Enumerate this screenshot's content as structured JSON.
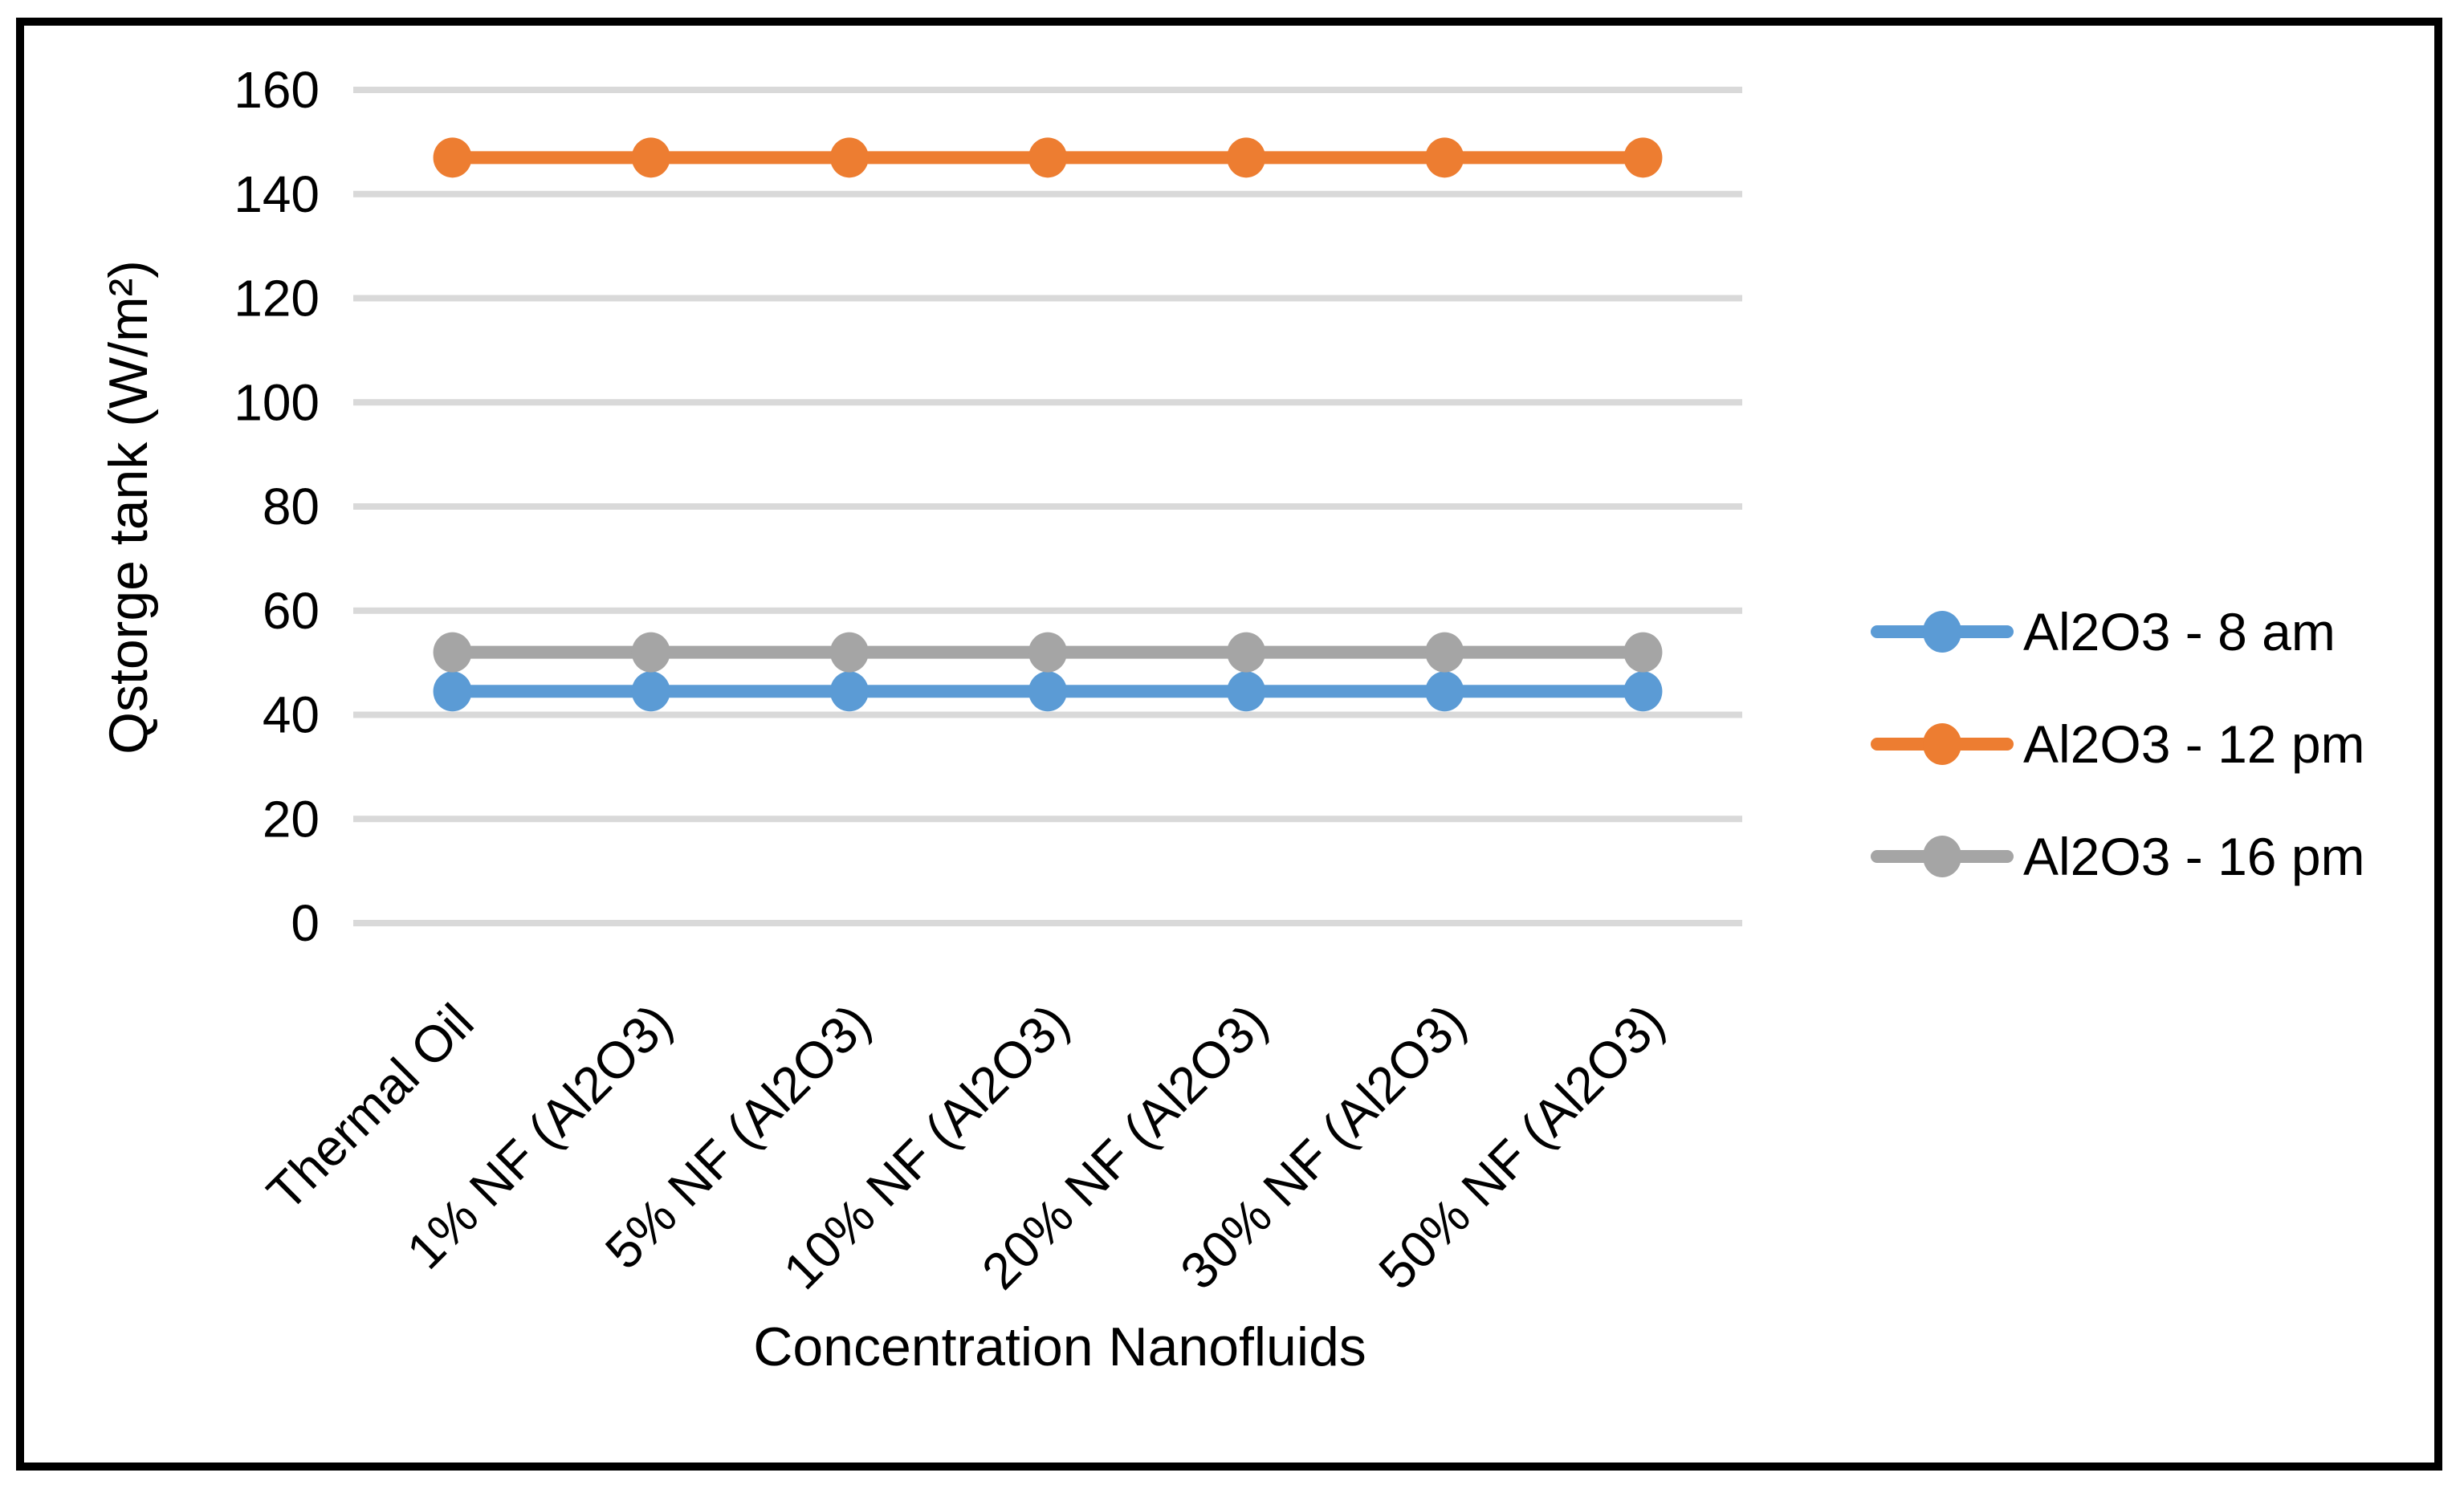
{
  "chart_data": {
    "type": "line",
    "title": "",
    "xlabel": "Concentration Nanofluids",
    "ylabel": "Qstorge tank (W/m²)",
    "ylim": [
      0,
      160
    ],
    "ytick_step": 20,
    "yticks": [
      0,
      20,
      40,
      60,
      80,
      100,
      120,
      140,
      160
    ],
    "grid": true,
    "legend_position": "right",
    "categories": [
      "Thermal Oil",
      "1% NF (Al2O3)",
      "5% NF (Al2O3)",
      "10% NF (Al2O3)",
      "20% NF (Al2O3)",
      "30% NF (Al2O3)",
      "50% NF (Al2O3)"
    ],
    "series": [
      {
        "name": "Al2O3 - 8 am",
        "color": "#5B9BD5",
        "values": [
          44.5,
          44.5,
          44.5,
          44.5,
          44.5,
          44.5,
          44.5
        ]
      },
      {
        "name": "Al2O3 - 12 pm",
        "color": "#ED7D31",
        "values": [
          147,
          147,
          147,
          147,
          147,
          147,
          147
        ]
      },
      {
        "name": "Al2O3 - 16 pm",
        "color": "#A5A5A5",
        "values": [
          52,
          52,
          52,
          52,
          52,
          52,
          52
        ]
      }
    ],
    "colors": {
      "gridline": "#D9D9D9",
      "text": "#000000",
      "frame_border": "#000000",
      "background": "#FFFFFF"
    }
  }
}
